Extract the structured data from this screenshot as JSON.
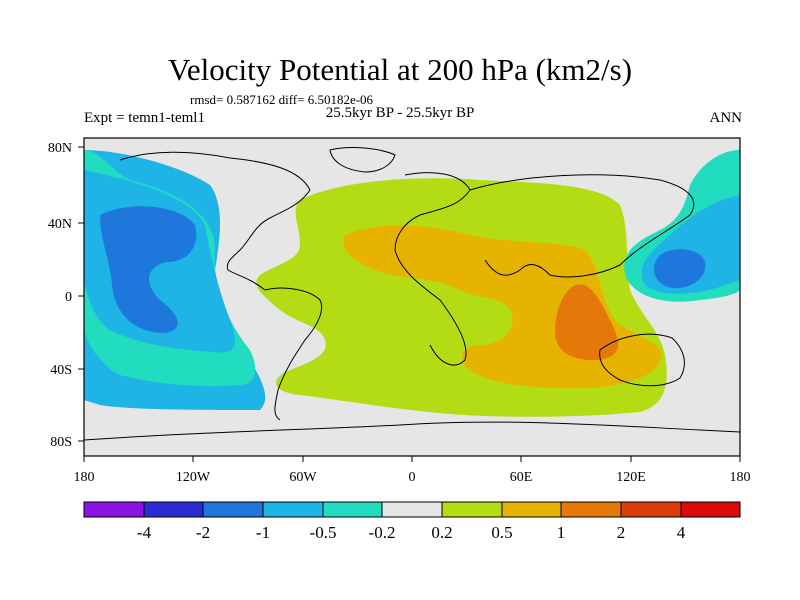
{
  "title": "Velocity Potential at 200 hPa (km2/s)",
  "stats": "rmsd= 0.587162 diff= 6.50182e-06",
  "experiment": "Expt = temn1-teml1",
  "subtitle": "25.5kyr BP - 25.5kyr BP",
  "season": "ANN",
  "lat_labels": [
    "80N",
    "40N",
    "0",
    "40S",
    "80S"
  ],
  "lon_labels": [
    "180",
    "120W",
    "60W",
    "0",
    "60E",
    "120E",
    "180"
  ],
  "colorbar": {
    "labels": [
      "-4",
      "-2",
      "-1",
      "-0.5",
      "-0.2",
      "0.2",
      "0.5",
      "1",
      "2",
      "4"
    ],
    "colors": [
      "#8a14e6",
      "#2b2bd6",
      "#1e78dc",
      "#1eb4e6",
      "#22dcc0",
      "#e6e6e6",
      "#b4dc14",
      "#e6b400",
      "#e6780a",
      "#dc3c0a",
      "#dc0a0a"
    ]
  },
  "field_colors": {
    "land": "#e6e6e6",
    "very_low": "#1e78dc",
    "low": "#1eb4e6",
    "mid_low": "#22dcc0",
    "mid_high": "#b4dc14",
    "high": "#e6b400",
    "very_high": "#e6780a"
  }
}
